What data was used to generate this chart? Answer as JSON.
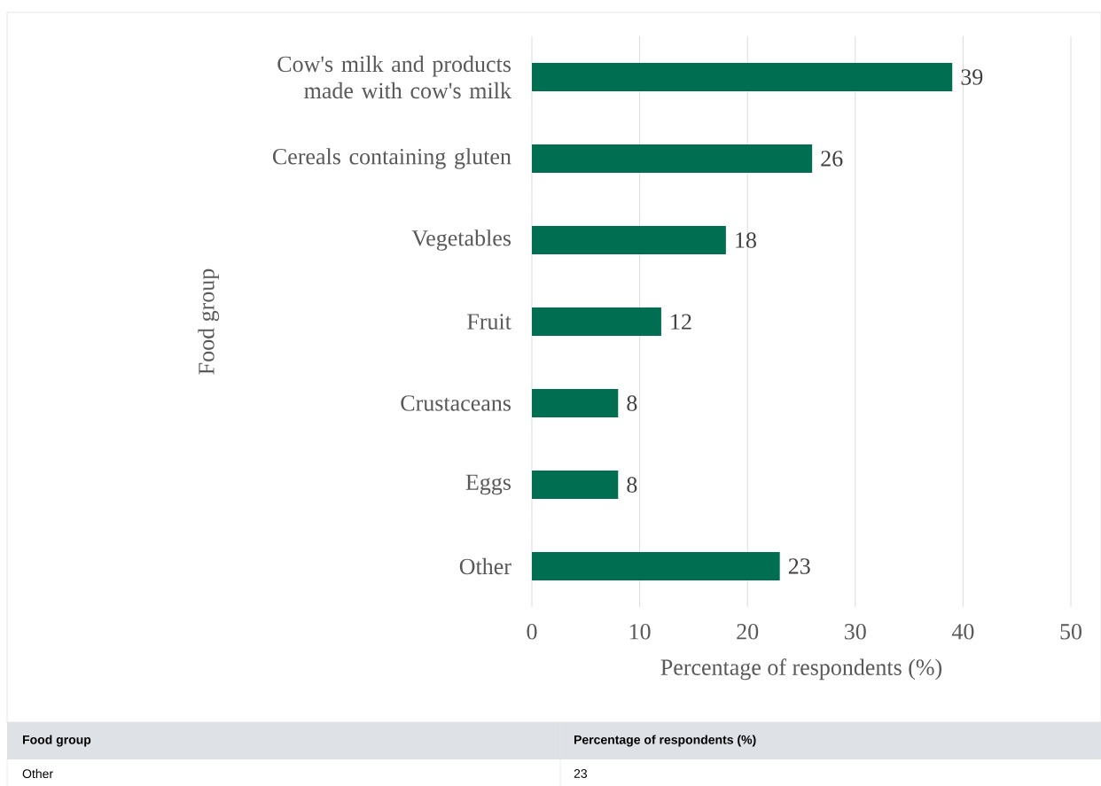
{
  "chart_data": {
    "type": "bar",
    "orientation": "horizontal",
    "categories": [
      "Cow's milk and products made with cow's milk",
      "Cereals containing gluten",
      "Vegetables",
      "Fruit",
      "Crustaceans",
      "Eggs",
      "Other"
    ],
    "values": [
      39,
      26,
      18,
      12,
      8,
      8,
      23
    ],
    "color": "#006f51",
    "xlim": [
      0,
      50
    ],
    "xticks": [
      0,
      10,
      20,
      30,
      40,
      50
    ],
    "xlabel": "Percentage of respondents (%)",
    "ylabel": "Food group",
    "value_labels": [
      "39",
      "26",
      "18",
      "12",
      "8",
      "8",
      "23"
    ],
    "grid": "x",
    "annotations": [
      "Food group",
      "Percentage of respondents (%)"
    ]
  }
}
